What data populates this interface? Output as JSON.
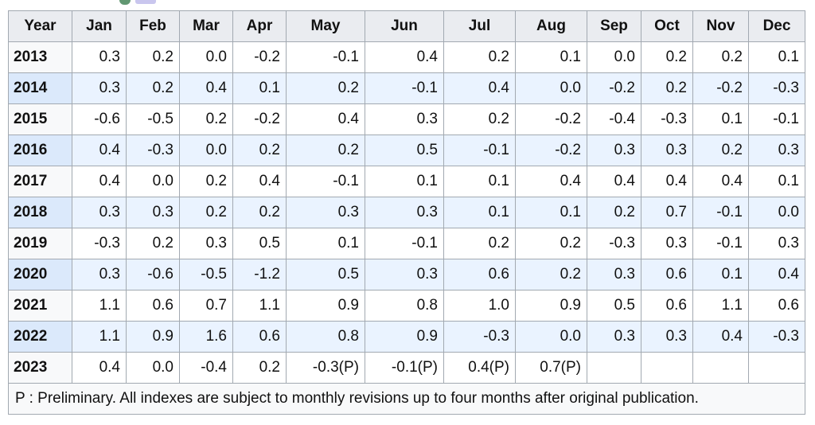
{
  "header": [
    "Year",
    "Jan",
    "Feb",
    "Mar",
    "Apr",
    "May",
    "Jun",
    "Jul",
    "Aug",
    "Sep",
    "Oct",
    "Nov",
    "Dec"
  ],
  "rows": [
    {
      "year": "2013",
      "values": [
        "0.3",
        "0.2",
        "0.0",
        "-0.2",
        "-0.1",
        "0.4",
        "0.2",
        "0.1",
        "0.0",
        "0.2",
        "0.2",
        "0.1"
      ]
    },
    {
      "year": "2014",
      "values": [
        "0.3",
        "0.2",
        "0.4",
        "0.1",
        "0.2",
        "-0.1",
        "0.4",
        "0.0",
        "-0.2",
        "0.2",
        "-0.2",
        "-0.3"
      ]
    },
    {
      "year": "2015",
      "values": [
        "-0.6",
        "-0.5",
        "0.2",
        "-0.2",
        "0.4",
        "0.3",
        "0.2",
        "-0.2",
        "-0.4",
        "-0.3",
        "0.1",
        "-0.1"
      ]
    },
    {
      "year": "2016",
      "values": [
        "0.4",
        "-0.3",
        "0.0",
        "0.2",
        "0.2",
        "0.5",
        "-0.1",
        "-0.2",
        "0.3",
        "0.3",
        "0.2",
        "0.3"
      ]
    },
    {
      "year": "2017",
      "values": [
        "0.4",
        "0.0",
        "0.2",
        "0.4",
        "-0.1",
        "0.1",
        "0.1",
        "0.4",
        "0.4",
        "0.4",
        "0.4",
        "0.1"
      ]
    },
    {
      "year": "2018",
      "values": [
        "0.3",
        "0.3",
        "0.2",
        "0.2",
        "0.3",
        "0.3",
        "0.1",
        "0.1",
        "0.2",
        "0.7",
        "-0.1",
        "0.0"
      ]
    },
    {
      "year": "2019",
      "values": [
        "-0.3",
        "0.2",
        "0.3",
        "0.5",
        "0.1",
        "-0.1",
        "0.2",
        "0.2",
        "-0.3",
        "0.3",
        "-0.1",
        "0.3"
      ]
    },
    {
      "year": "2020",
      "values": [
        "0.3",
        "-0.6",
        "-0.5",
        "-1.2",
        "0.5",
        "0.3",
        "0.6",
        "0.2",
        "0.3",
        "0.6",
        "0.1",
        "0.4"
      ]
    },
    {
      "year": "2021",
      "values": [
        "1.1",
        "0.6",
        "0.7",
        "1.1",
        "0.9",
        "0.8",
        "1.0",
        "0.9",
        "0.5",
        "0.6",
        "1.1",
        "0.6"
      ]
    },
    {
      "year": "2022",
      "values": [
        "1.1",
        "0.9",
        "1.6",
        "0.6",
        "0.8",
        "0.9",
        "-0.3",
        "0.0",
        "0.3",
        "0.3",
        "0.4",
        "-0.3"
      ]
    },
    {
      "year": "2023",
      "values": [
        "0.4",
        "0.0",
        "-0.4",
        "0.2",
        "-0.3(P)",
        "-0.1(P)",
        "0.4(P)",
        "0.7(P)",
        "",
        "",
        "",
        ""
      ]
    }
  ],
  "footnote": "P : Preliminary. All indexes are subject to monthly revisions up to four months after original publication.",
  "colors": {
    "header_bg": "#eaecf0",
    "alt_row_bg": "#eaf3ff",
    "border": "#a2a9b1"
  }
}
